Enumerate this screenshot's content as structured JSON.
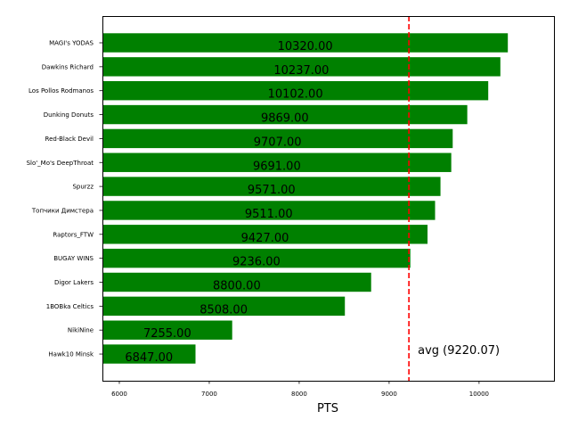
{
  "chart_data": {
    "type": "bar",
    "orientation": "horizontal",
    "title": "",
    "xlabel": "PTS",
    "ylabel": "",
    "xlim": [
      5812,
      10833
    ],
    "xticks": [
      6000,
      7000,
      8000,
      9000,
      10000
    ],
    "grid": false,
    "bar_color": "#008000",
    "categories": [
      "MAGI's YODAS",
      "Dawkins Richard",
      "Los Pollos Rodmanos",
      "Dunking Donuts",
      "Red-Black Devil",
      "Slo'_Mo's DeepThroat",
      "Spurzz",
      "Топчики Димстера",
      "Raptors_FTW",
      "BUGAY WINS",
      "Digor Lakers",
      "1BOBka Celtics",
      "NikiNine",
      "Hawk10 Minsk"
    ],
    "values": [
      10320,
      10237,
      10102,
      9869,
      9707,
      9691,
      9571,
      9511,
      9427,
      9236,
      8800,
      8508,
      7255,
      6847
    ],
    "data_labels": [
      "10320.00",
      "10237.00",
      "10102.00",
      "9869.00",
      "9707.00",
      "9691.00",
      "9571.00",
      "9511.00",
      "9427.00",
      "9236.00",
      "8800.00",
      "8508.00",
      "7255.00",
      "6847.00"
    ],
    "average": {
      "value": 9220.07,
      "label": "avg (9220.07)",
      "color": "#ff0000",
      "style": "dashed"
    }
  }
}
